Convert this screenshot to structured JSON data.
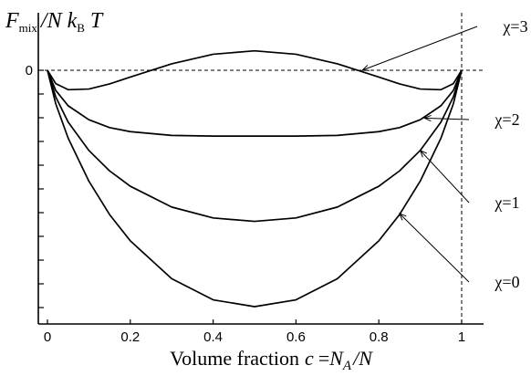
{
  "chart_data": {
    "type": "line",
    "title": "",
    "xlabel": {
      "text": "Volume fraction",
      "var": "c",
      "equals": "=",
      "num_main": "N",
      "num_sub": "A",
      "den": "/N"
    },
    "ylabel": {
      "main": "F",
      "sub_mix": "mix",
      "mid": "/N k",
      "sub_b": "B",
      "end": " T"
    },
    "xlim": [
      0,
      1
    ],
    "ylim": [
      -1.1,
      0.3
    ],
    "x_ticks": [
      0,
      0.2,
      0.4,
      0.6,
      0.8,
      1
    ],
    "x_tick_labels": [
      "0",
      "0.2",
      "0.4",
      "0.6",
      "0.8",
      "1"
    ],
    "y_ticks": [
      0
    ],
    "y_tick_labels": [
      "0"
    ],
    "grid": false,
    "legend": "none",
    "series": [
      {
        "name": "χ=0",
        "chi": 0,
        "x": [
          0,
          0.02,
          0.05,
          0.1,
          0.15,
          0.2,
          0.3,
          0.4,
          0.5,
          0.6,
          0.7,
          0.8,
          0.85,
          0.9,
          0.95,
          0.98,
          1
        ],
        "y": [
          0,
          -0.098,
          -0.199,
          -0.325,
          -0.423,
          -0.5,
          -0.611,
          -0.673,
          -0.693,
          -0.673,
          -0.611,
          -0.5,
          -0.423,
          -0.325,
          -0.199,
          -0.098,
          0
        ]
      },
      {
        "name": "χ=1",
        "chi": 1,
        "x": [
          0,
          0.02,
          0.05,
          0.1,
          0.15,
          0.2,
          0.3,
          0.4,
          0.5,
          0.6,
          0.7,
          0.8,
          0.85,
          0.9,
          0.95,
          0.98,
          1
        ],
        "y": [
          0,
          -0.078,
          -0.152,
          -0.235,
          -0.295,
          -0.34,
          -0.401,
          -0.433,
          -0.443,
          -0.433,
          -0.401,
          -0.34,
          -0.295,
          -0.235,
          -0.152,
          -0.078,
          0
        ]
      },
      {
        "name": "χ=2",
        "chi": 2,
        "x": [
          0,
          0.02,
          0.05,
          0.1,
          0.15,
          0.2,
          0.3,
          0.4,
          0.5,
          0.6,
          0.7,
          0.8,
          0.85,
          0.9,
          0.95,
          0.98,
          1
        ],
        "y": [
          0,
          -0.059,
          -0.104,
          -0.145,
          -0.168,
          -0.18,
          -0.191,
          -0.193,
          -0.193,
          -0.193,
          -0.191,
          -0.18,
          -0.168,
          -0.145,
          -0.104,
          -0.059,
          0
        ]
      },
      {
        "name": "χ=3",
        "chi": 3,
        "x": [
          0,
          0.02,
          0.05,
          0.1,
          0.15,
          0.2,
          0.3,
          0.4,
          0.5,
          0.6,
          0.7,
          0.8,
          0.85,
          0.9,
          0.95,
          0.98,
          1
        ],
        "y": [
          0,
          -0.039,
          -0.057,
          -0.055,
          -0.04,
          -0.02,
          0.019,
          0.047,
          0.057,
          0.047,
          0.019,
          -0.02,
          -0.04,
          -0.055,
          -0.057,
          -0.039,
          0
        ]
      }
    ],
    "annotations": [
      {
        "text": "χ=3",
        "points_to_x": 0.76,
        "points_to_y": 0
      },
      {
        "text": "χ=2",
        "points_to_x": 0.91,
        "points_to_y": -0.14
      },
      {
        "text": "χ=1",
        "points_to_x": 0.9,
        "points_to_y": -0.235
      },
      {
        "text": "χ=0",
        "points_to_x": 0.85,
        "points_to_y": -0.42
      }
    ],
    "reference_lines": [
      {
        "orientation": "horizontal",
        "value": 0,
        "style": "dashed"
      },
      {
        "orientation": "vertical",
        "value": 1,
        "style": "dashed"
      }
    ]
  }
}
